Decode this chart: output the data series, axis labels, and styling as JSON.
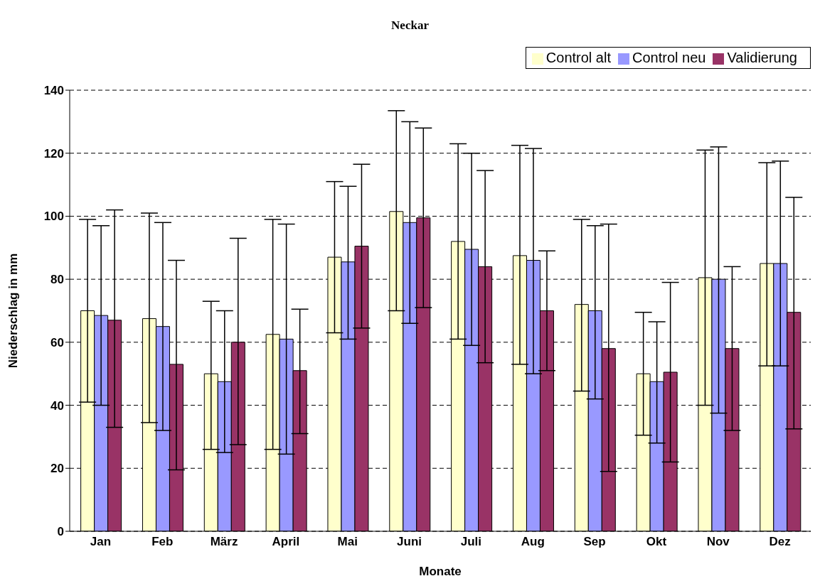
{
  "chart_data": {
    "type": "bar",
    "title": "Neckar",
    "xlabel": "Monate",
    "ylabel": "Niederschlag in mm",
    "categories": [
      "Jan",
      "Feb",
      "März",
      "April",
      "Mai",
      "Juni",
      "Juli",
      "Aug",
      "Sep",
      "Okt",
      "Nov",
      "Dez"
    ],
    "series": [
      {
        "name": "Control alt",
        "color": "#ffffcc",
        "values": [
          70,
          67.5,
          50,
          62.5,
          87,
          101.5,
          92,
          87.5,
          72,
          50,
          80.5,
          85
        ],
        "errors": [
          [
            41,
            99
          ],
          [
            34.5,
            101
          ],
          [
            26,
            73
          ],
          [
            26,
            99
          ],
          [
            63,
            111
          ],
          [
            70,
            133.5
          ],
          [
            61,
            123
          ],
          [
            53,
            122.5
          ],
          [
            44.5,
            99
          ],
          [
            30.5,
            69.5
          ],
          [
            40,
            121
          ],
          [
            52.5,
            117
          ]
        ]
      },
      {
        "name": "Control neu",
        "color": "#9999ff",
        "values": [
          68.5,
          65,
          47.5,
          61,
          85.5,
          98,
          89.5,
          86,
          70,
          47.5,
          80,
          85
        ],
        "errors": [
          [
            40,
            97
          ],
          [
            32,
            98
          ],
          [
            25,
            70
          ],
          [
            24.5,
            97.5
          ],
          [
            61,
            109.5
          ],
          [
            66,
            130
          ],
          [
            59,
            120
          ],
          [
            50,
            121.5
          ],
          [
            42,
            97
          ],
          [
            28,
            66.5
          ],
          [
            37.5,
            122
          ],
          [
            52.5,
            117.5
          ]
        ]
      },
      {
        "name": "Validierung",
        "color": "#993366",
        "values": [
          67,
          53,
          60,
          51,
          90.5,
          99.5,
          84,
          70,
          58,
          50.5,
          58,
          69.5
        ],
        "errors": [
          [
            33,
            102
          ],
          [
            19.5,
            86
          ],
          [
            27.5,
            93
          ],
          [
            31,
            70.5
          ],
          [
            64.5,
            116.5
          ],
          [
            71,
            128
          ],
          [
            53.5,
            114.5
          ],
          [
            51,
            89
          ],
          [
            19,
            97.5
          ],
          [
            22,
            79
          ],
          [
            32,
            84
          ],
          [
            32.5,
            106
          ]
        ]
      }
    ],
    "ylim": [
      0,
      140
    ],
    "yticks": [
      0,
      20,
      40,
      60,
      80,
      100,
      120,
      140
    ],
    "grid": "y",
    "legend": "top right"
  }
}
